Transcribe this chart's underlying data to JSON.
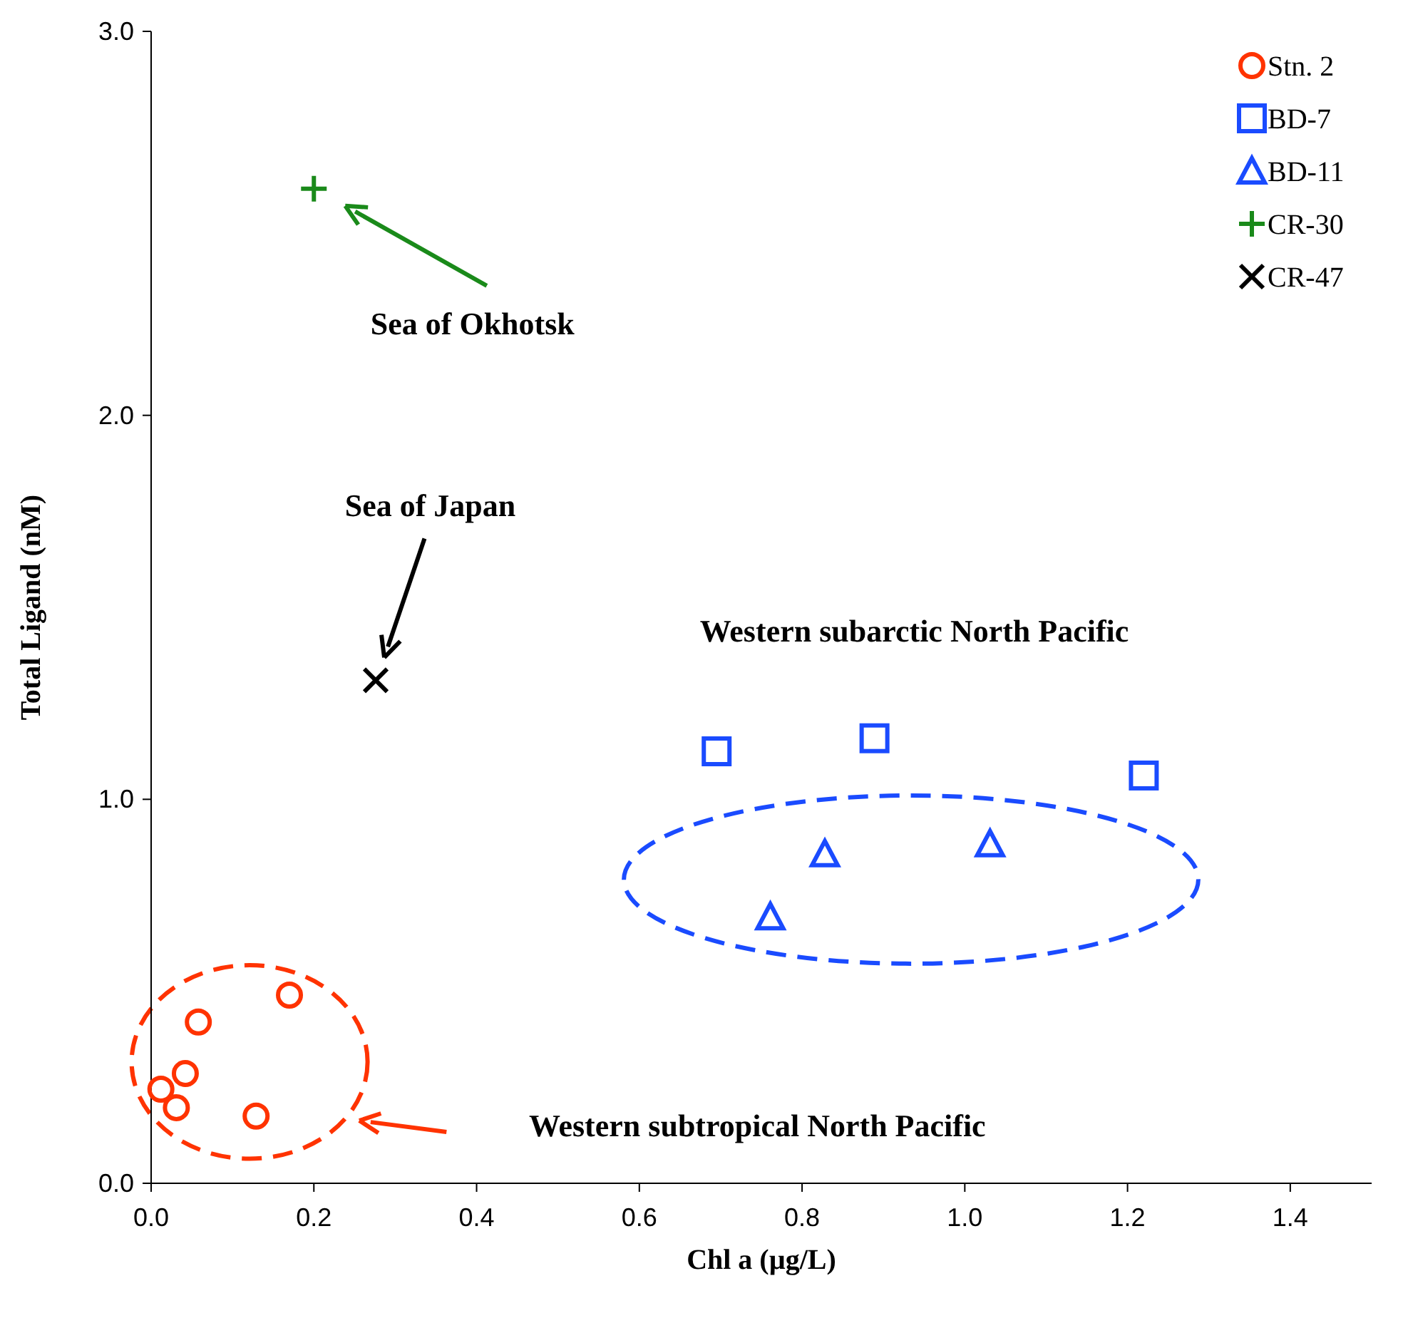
{
  "chart_data": {
    "type": "scatter",
    "xlabel": "Chl a (µg/L)",
    "ylabel": "Total Ligand (nM)",
    "xlim": [
      0,
      1.5
    ],
    "xticks": [
      {
        "value": 0,
        "label": "0.0"
      },
      0.2,
      0.4,
      0.6,
      0.8,
      {
        "value": 1,
        "label": "1.0"
      },
      1.2,
      1.4
    ],
    "ylim": [
      0,
      3
    ],
    "yticks": [
      {
        "value": 0,
        "label": "0.0"
      },
      {
        "value": 1,
        "label": "1.0"
      },
      {
        "value": 2,
        "label": "2.0"
      },
      {
        "value": 3,
        "label": "3.0"
      }
    ],
    "grid": false,
    "legend": "top right",
    "series": [
      {
        "name": "Stn. 2",
        "color": "#ff3300",
        "marker": "circle",
        "x": [
          0.012,
          0.031,
          0.042,
          0.058,
          0.129,
          0.17
        ],
        "values": [
          0.245,
          0.197,
          0.286,
          0.42,
          0.175,
          0.49
        ]
      },
      {
        "name": "BD-7",
        "color": "#1a4bff",
        "marker": "square",
        "x": [
          0.695,
          0.889,
          1.22
        ],
        "values": [
          1.125,
          1.159,
          1.062
        ]
      },
      {
        "name": "BD-11",
        "color": "#1a4bff",
        "marker": "triangle",
        "x": [
          0.761,
          0.828,
          1.031
        ],
        "values": [
          0.694,
          0.858,
          0.884
        ]
      },
      {
        "name": "CR-30",
        "color": "#1a8a1a",
        "marker": "cross",
        "x": [
          0.2
        ],
        "values": [
          2.59
        ]
      },
      {
        "name": "CR-47",
        "color": "#000000",
        "marker": "x",
        "x": [
          0.276
        ],
        "values": [
          1.31
        ]
      }
    ],
    "annotations": [
      "Sea of Okhotsk",
      "Sea of Japan",
      "Western subarctic North Pacific",
      "Western subtropical North Pacific"
    ]
  }
}
